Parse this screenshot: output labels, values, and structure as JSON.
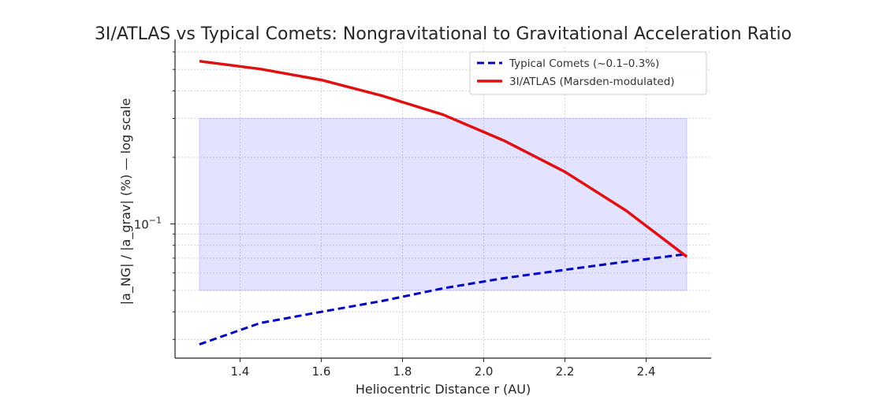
{
  "chart_data": {
    "type": "line",
    "title": "3I/ATLAS vs Typical Comets: Nongravitational to Gravitational Acceleration Ratio",
    "xlabel": "Heliocentric Distance r (AU)",
    "ylabel": "|a_NG| / |a_grav| (%) — log scale",
    "xlim": [
      1.24,
      2.56
    ],
    "ylim": [
      0.0247,
      0.63
    ],
    "yscale": "log",
    "grid": true,
    "legend_position": "top-right",
    "x_ticks": [
      1.4,
      1.6,
      1.8,
      2.0,
      2.2,
      2.4
    ],
    "x_tick_labels": [
      "1.4",
      "1.6",
      "1.8",
      "2.0",
      "2.2",
      "2.4"
    ],
    "y_major_tick_label": {
      "base": "10",
      "exp": "−1",
      "value": 0.1
    },
    "y_minor_ticks": [
      0.03,
      0.04,
      0.05,
      0.06,
      0.07,
      0.08,
      0.09,
      0.2,
      0.3,
      0.4,
      0.5,
      0.6
    ],
    "band": {
      "y_min": 0.05,
      "y_max": 0.3,
      "x_min": 1.3,
      "x_max": 2.5,
      "color": "#0000ff",
      "opacity": 0.11
    },
    "x": [
      1.3,
      1.45,
      1.6,
      1.75,
      1.9,
      2.05,
      2.2,
      2.35,
      2.5
    ],
    "series": [
      {
        "name": "Typical Comets (~0.1–0.3%)",
        "color": "#0000c0",
        "style": "dashed",
        "values": [
          0.0285,
          0.0356,
          0.04,
          0.0448,
          0.0511,
          0.0568,
          0.062,
          0.0675,
          0.073
        ]
      },
      {
        "name": "3I/ATLAS (Marsden-modulated)",
        "color": "#e01010",
        "style": "solid",
        "values": [
          0.545,
          0.502,
          0.448,
          0.38,
          0.312,
          0.238,
          0.172,
          0.115,
          0.071
        ]
      }
    ]
  }
}
